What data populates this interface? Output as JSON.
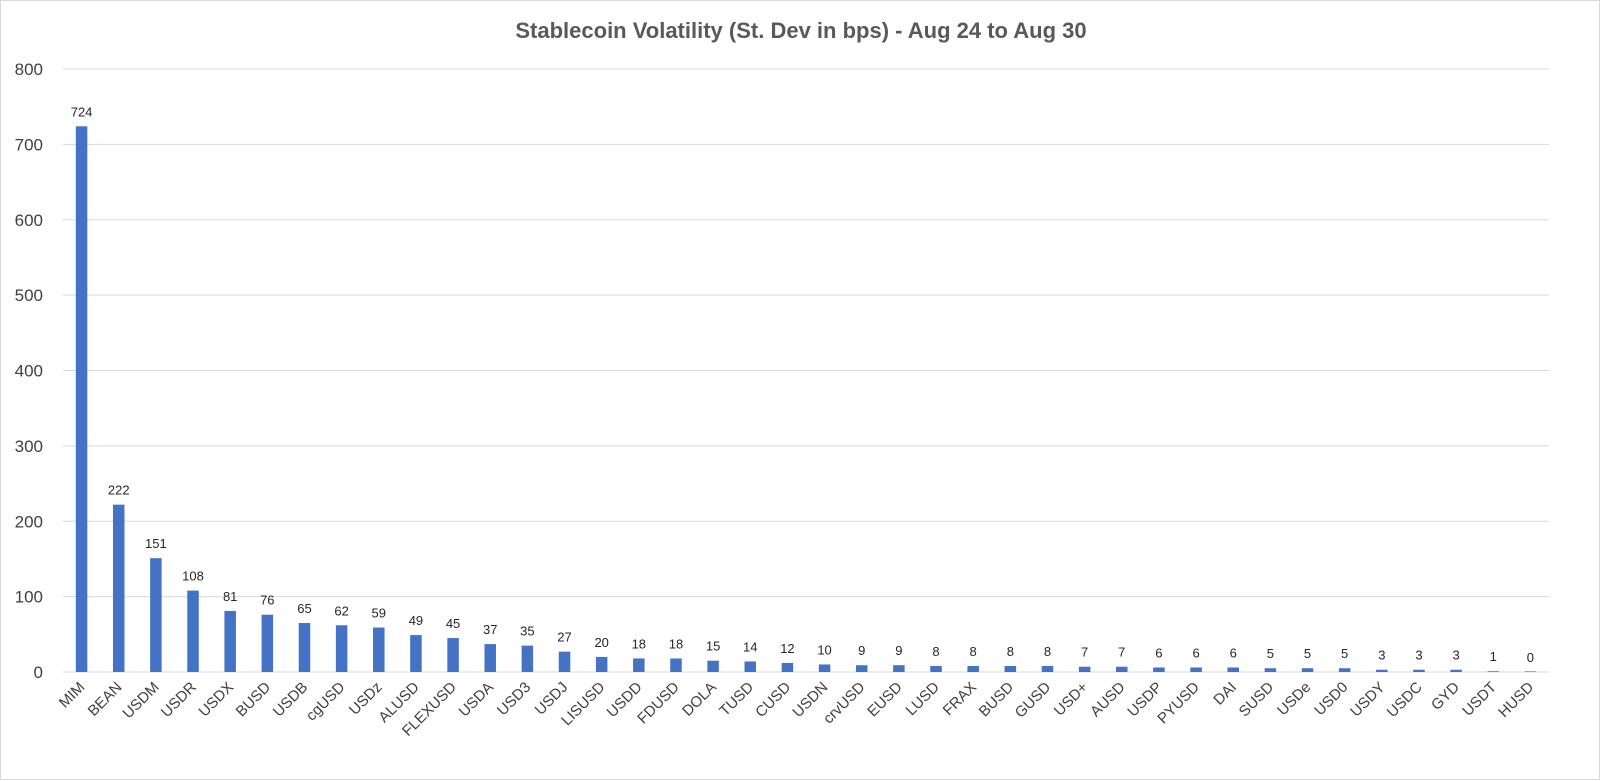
{
  "chart_data": {
    "type": "bar",
    "title": "Stablecoin Volatility (St. Dev in bps) - Aug 24 to Aug 30",
    "xlabel": "",
    "ylabel": "",
    "ylim": [
      0,
      800
    ],
    "yticks": [
      0,
      100,
      200,
      300,
      400,
      500,
      600,
      700,
      800
    ],
    "grid": true,
    "legend": "none",
    "bar_color": "#4472c4",
    "categories": [
      "MIM",
      "BEAN",
      "USDM",
      "USDR",
      "USDX",
      "BUSD",
      "USDB",
      "cgUSD",
      "USDz",
      "ALUSD",
      "FLEXUSD",
      "USDA",
      "USD3",
      "USDJ",
      "LISUSD",
      "USDD",
      "FDUSD",
      "DOLA",
      "TUSD",
      "CUSD",
      "USDN",
      "crvUSD",
      "EUSD",
      "LUSD",
      "FRAX",
      "BUSD",
      "GUSD",
      "USD+",
      "AUSD",
      "USDP",
      "PYUSD",
      "DAI",
      "SUSD",
      "USDe",
      "USD0",
      "USDY",
      "USDC",
      "GYD",
      "USDT",
      "HUSD"
    ],
    "values": [
      724,
      222,
      151,
      108,
      81,
      76,
      65,
      62,
      59,
      49,
      45,
      37,
      35,
      27,
      20,
      18,
      18,
      15,
      14,
      12,
      10,
      9,
      9,
      8,
      8,
      8,
      8,
      7,
      7,
      6,
      6,
      6,
      5,
      5,
      5,
      3,
      3,
      3,
      1,
      0
    ]
  }
}
